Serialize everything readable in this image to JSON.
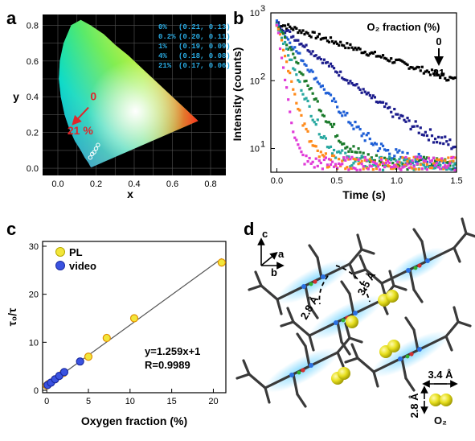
{
  "panels": {
    "a": "a",
    "b": "b",
    "c": "c",
    "d": "d"
  },
  "colors": {
    "red": "#e0262b",
    "cie_text": "#29a9e0",
    "pl": "#f2e63a",
    "video": "#3a52e0",
    "line": "#555555"
  },
  "chart_data": [
    {
      "type": "scatter",
      "panel": "a",
      "xlabel": "x",
      "ylabel": "y",
      "xticks": [
        "0.0",
        "0.2",
        "0.4",
        "0.6",
        "0.8"
      ],
      "yticks": [
        "0.0",
        "0.2",
        "0.4",
        "0.6",
        "0.8"
      ],
      "xlim": [
        -0.08,
        0.88
      ],
      "ylim": [
        -0.04,
        0.86
      ],
      "grid": true,
      "table": [
        {
          "o2": "0%",
          "xy": "(0.21, 0.13)"
        },
        {
          "o2": "0.2%",
          "xy": "(0.20, 0.11)"
        },
        {
          "o2": "1%",
          "xy": "(0.19, 0.09)"
        },
        {
          "o2": "4%",
          "xy": "(0.18, 0.08)"
        },
        {
          "o2": "21%",
          "xy": "(0.17, 0.06)"
        }
      ],
      "points": [
        [
          0.21,
          0.13
        ],
        [
          0.2,
          0.11
        ],
        [
          0.19,
          0.09
        ],
        [
          0.18,
          0.08
        ],
        [
          0.17,
          0.06
        ]
      ],
      "arrow_start_label": "0",
      "arrow_end_label": "21 %"
    },
    {
      "type": "scatter",
      "panel": "b",
      "xlabel": "Time (s)",
      "ylabel": "Intensity (counts)",
      "xticks": [
        "0.0",
        "0.5",
        "1.0",
        "1.5"
      ],
      "ytick_bases": [
        "10",
        "10",
        "10"
      ],
      "ytick_exps": [
        "1",
        "2",
        "3"
      ],
      "xlim": [
        -0.05,
        1.5
      ],
      "ylim_log": [
        0.65,
        3.0
      ],
      "yscale": "log",
      "legend_title": "O₂ fraction (%)",
      "legend_from": "0",
      "legend_to": "21",
      "series": [
        {
          "color": "#000000",
          "tau": 0.75
        },
        {
          "color": "#1c1c8c",
          "tau": 0.3
        },
        {
          "color": "#1f5fd6",
          "tau": 0.17
        },
        {
          "color": "#1a7a2a",
          "tau": 0.12
        },
        {
          "color": "#28a8a0",
          "tau": 0.09
        },
        {
          "color": "#ff8a1a",
          "tau": 0.06
        },
        {
          "color": "#e03bd8",
          "tau": 0.035
        }
      ],
      "baseline": 6
    },
    {
      "type": "scatter",
      "panel": "c",
      "xlabel": "Oxygen fraction (%)",
      "ylabel": "τ₀/τ",
      "xticks": [
        "0",
        "5",
        "10",
        "15",
        "20"
      ],
      "yticks": [
        "0",
        "10",
        "20",
        "30"
      ],
      "xlim": [
        -0.5,
        21.5
      ],
      "ylim": [
        -0.5,
        31
      ],
      "series": [
        {
          "name": "PL",
          "points": [
            [
              0,
              1
            ],
            [
              0.2,
              1.3
            ],
            [
              1,
              2.3
            ],
            [
              2,
              3.6
            ],
            [
              5,
              7.0
            ],
            [
              7.2,
              10.9
            ],
            [
              10.5,
              15.0
            ],
            [
              21,
              26.6
            ]
          ]
        },
        {
          "name": "video",
          "points": [
            [
              0.1,
              1.1
            ],
            [
              0.5,
              1.6
            ],
            [
              1,
              2.3
            ],
            [
              1.5,
              3.0
            ],
            [
              2.1,
              3.8
            ],
            [
              4,
              6.0
            ]
          ]
        }
      ],
      "fit": {
        "slope": 1.259,
        "intercept": 1,
        "equation": "y=1.259x+1",
        "r": "R=0.9989"
      }
    }
  ],
  "structure": {
    "axis_c": "c",
    "axis_a": "a",
    "axis_b": "b",
    "dist1": "2.8 Å",
    "dist2": "3.5 Å",
    "o2_width": "3.4 Å",
    "o2_height": "2.8 Å",
    "o2_label": "O₂"
  }
}
